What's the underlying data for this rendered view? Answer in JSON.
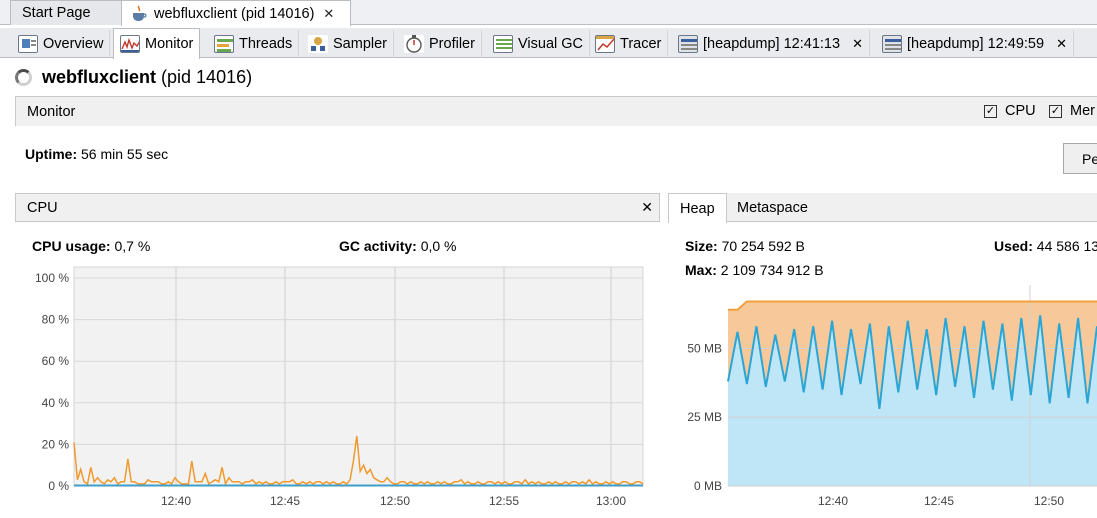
{
  "doc_tabs": [
    {
      "label": "Start Page"
    },
    {
      "label": "webfluxclient (pid 14016)"
    }
  ],
  "sub_tabs": [
    {
      "label": "Overview"
    },
    {
      "label": "Monitor"
    },
    {
      "label": "Threads"
    },
    {
      "label": "Sampler"
    },
    {
      "label": "Profiler"
    },
    {
      "label": "Visual GC"
    },
    {
      "label": "Tracer"
    },
    {
      "label": "[heapdump] 12:41:13"
    },
    {
      "label": "[heapdump] 12:49:59"
    }
  ],
  "title": {
    "name": "webfluxclient",
    "pid": "(pid 14016)"
  },
  "monitor": {
    "label": "Monitor",
    "checkboxes": [
      {
        "label": "CPU",
        "checked": true
      },
      {
        "label": "Mer",
        "checked": true
      }
    ]
  },
  "uptime": {
    "label": "Uptime:",
    "value": "56 min 55 sec"
  },
  "perform_button": "Pe",
  "cpu_panel": {
    "title": "CPU",
    "usage_label": "CPU usage:",
    "usage_value": "0,7 %",
    "gc_label": "GC activity:",
    "gc_value": "0,0 %"
  },
  "heap_panel": {
    "tabs": [
      "Heap",
      "Metaspace"
    ],
    "size_label": "Size:",
    "size_value": "70 254 592 B",
    "max_label": "Max:",
    "max_value": "2 109 734 912 B",
    "used_label": "Used:",
    "used_value": "44 586 13"
  },
  "colors": {
    "cpu_line": "#f09a2d",
    "gc_line": "#3f9ec9",
    "heap_size_fill": "#f7c99a",
    "heap_size_line": "#f0a03c",
    "heap_used_fill": "#bfe6f7",
    "heap_used_line": "#2aa6d6"
  },
  "chart_data": [
    {
      "type": "line",
      "title": "CPU",
      "y_ticks": [
        "100 %",
        "80 %",
        "60 %",
        "40 %",
        "20 %",
        "0 %"
      ],
      "ylim": [
        0,
        100
      ],
      "x_ticks": [
        "12:40",
        "12:45",
        "12:50",
        "12:55",
        "13:00"
      ],
      "series": [
        {
          "name": "CPU usage",
          "values": [
            21,
            3,
            8,
            2,
            1,
            9,
            2,
            4,
            2,
            1,
            3,
            2,
            4,
            1,
            2,
            2,
            13,
            2,
            2,
            1,
            1,
            1,
            3,
            2,
            2,
            2,
            1,
            1,
            2,
            1,
            4,
            2,
            1,
            1,
            1,
            12,
            2,
            2,
            2,
            6,
            1,
            2,
            3,
            2,
            9,
            1,
            4,
            2,
            2,
            2,
            1,
            2,
            2,
            3,
            1,
            2,
            1,
            2,
            1,
            1,
            2,
            1,
            2,
            2,
            2,
            3,
            1,
            1,
            2,
            1,
            2,
            1,
            2,
            2,
            1,
            2,
            1,
            2,
            1,
            1,
            2,
            1,
            3,
            12,
            24,
            7,
            10,
            6,
            8,
            4,
            3,
            2,
            2,
            4,
            2,
            1,
            1,
            2,
            2,
            1,
            2,
            1,
            1,
            2,
            1,
            2,
            1,
            1,
            2,
            1,
            2,
            1,
            1,
            2,
            2,
            3,
            1,
            2,
            1,
            1,
            2,
            1,
            1,
            2,
            2,
            1,
            2,
            1,
            2,
            1,
            1,
            2,
            2,
            1,
            3,
            1,
            2,
            1,
            2,
            1,
            1,
            2,
            1,
            2,
            1,
            1,
            2,
            1,
            2,
            2,
            1,
            2,
            1,
            3,
            1,
            2,
            1,
            1,
            2,
            1,
            2,
            1,
            1,
            2,
            2,
            1,
            1,
            2,
            2,
            1
          ]
        },
        {
          "name": "GC activity",
          "values": [
            0
          ]
        }
      ]
    },
    {
      "type": "area",
      "title": "Heap",
      "y_ticks": [
        "50 MB",
        "25 MB",
        "0 MB"
      ],
      "ylim": [
        0,
        73
      ],
      "x_ticks": [
        "12:40",
        "12:45",
        "12:50"
      ],
      "series": [
        {
          "name": "Size",
          "values": [
            64,
            64,
            67,
            67,
            67,
            67,
            67,
            67,
            67,
            67,
            67,
            67,
            67,
            67,
            67,
            67,
            67,
            67,
            67,
            67,
            67,
            67,
            67,
            67,
            67,
            67,
            67,
            67,
            67,
            67,
            67,
            67,
            67,
            67,
            67,
            67,
            67,
            67,
            67,
            67
          ]
        },
        {
          "name": "Used",
          "values": [
            38,
            56,
            37,
            58,
            36,
            55,
            38,
            57,
            34,
            58,
            35,
            60,
            33,
            57,
            37,
            59,
            28,
            58,
            34,
            60,
            35,
            57,
            33,
            61,
            36,
            58,
            32,
            60,
            35,
            59,
            31,
            61,
            33,
            62,
            30,
            59,
            32,
            61,
            30,
            58
          ]
        }
      ]
    }
  ]
}
